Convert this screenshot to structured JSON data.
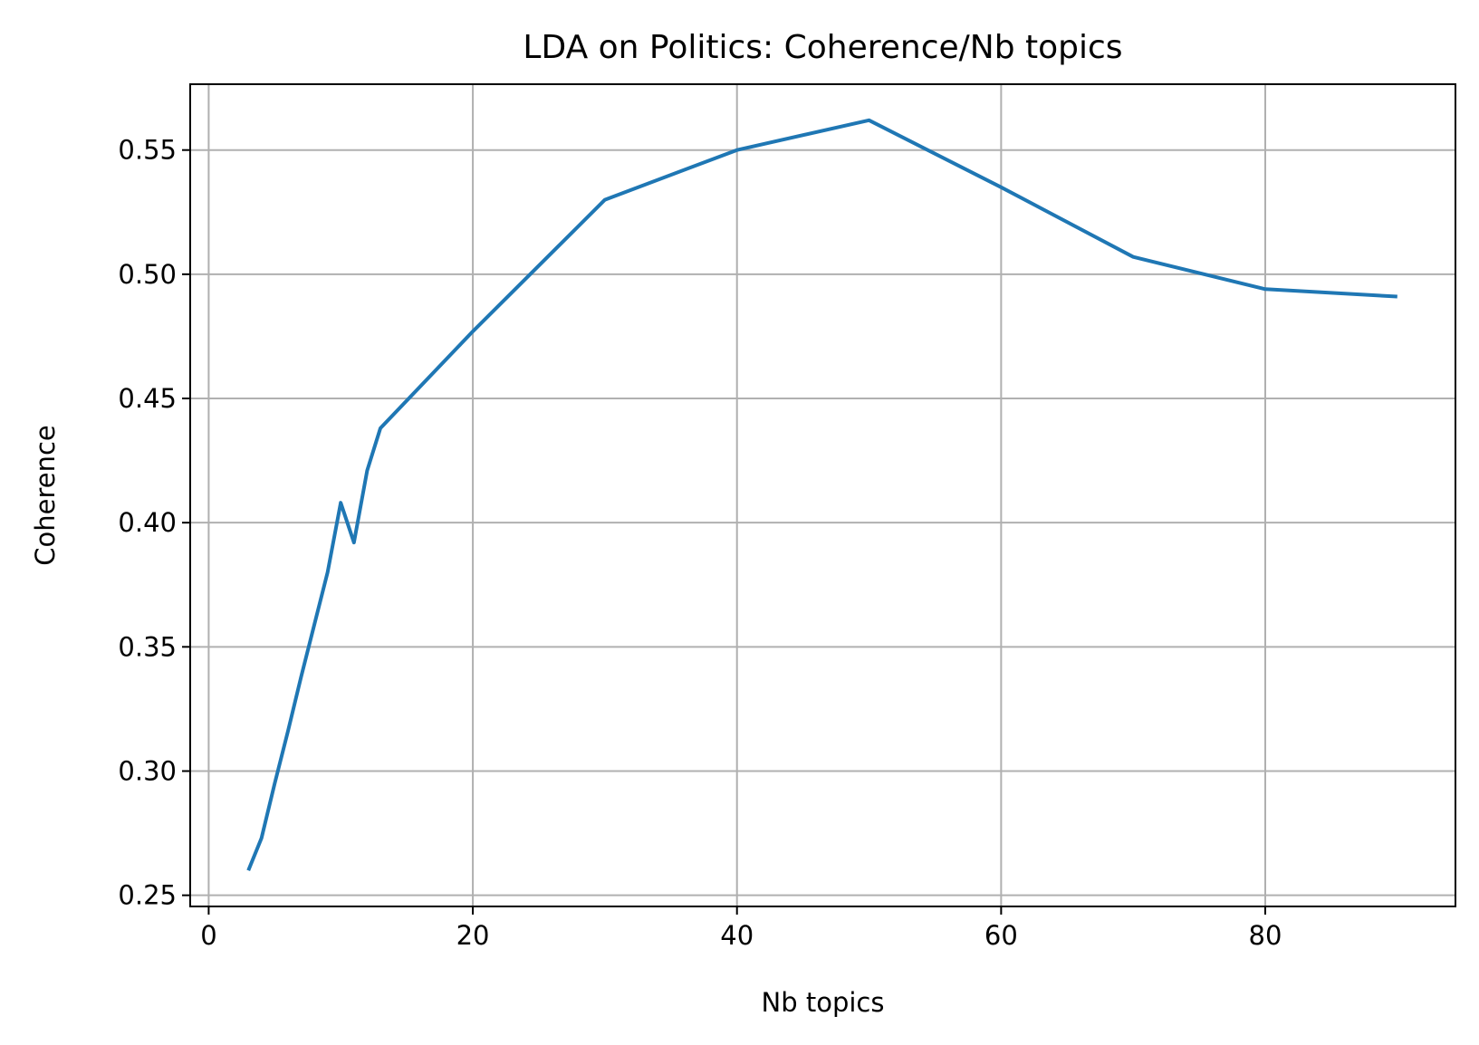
{
  "chart_data": {
    "type": "line",
    "title": "LDA on Politics: Coherence/Nb topics",
    "xlabel": "Nb topics",
    "ylabel": "Coherence",
    "xlim": [
      -1.4,
      94.4
    ],
    "ylim": [
      0.2455,
      0.5765
    ],
    "xticks": [
      0,
      20,
      40,
      60,
      80
    ],
    "xtick_labels": [
      "0",
      "20",
      "40",
      "60",
      "80"
    ],
    "yticks": [
      0.25,
      0.3,
      0.35,
      0.4,
      0.45,
      0.5,
      0.55
    ],
    "ytick_labels": [
      "0.25",
      "0.30",
      "0.35",
      "0.40",
      "0.45",
      "0.50",
      "0.55"
    ],
    "grid": true,
    "colors": {
      "line": "#1f77b4",
      "grid": "#b0b0b0",
      "axes": "#000000"
    },
    "series": [
      {
        "x": [
          3,
          4,
          5,
          6,
          7,
          8,
          9,
          10,
          11,
          12,
          13,
          20,
          30,
          40,
          50,
          60,
          70,
          80,
          90
        ],
        "values": [
          0.26,
          0.273,
          0.295,
          0.316,
          0.338,
          0.359,
          0.38,
          0.408,
          0.392,
          0.421,
          0.438,
          0.477,
          0.53,
          0.55,
          0.562,
          0.535,
          0.507,
          0.494,
          0.491
        ]
      }
    ]
  }
}
